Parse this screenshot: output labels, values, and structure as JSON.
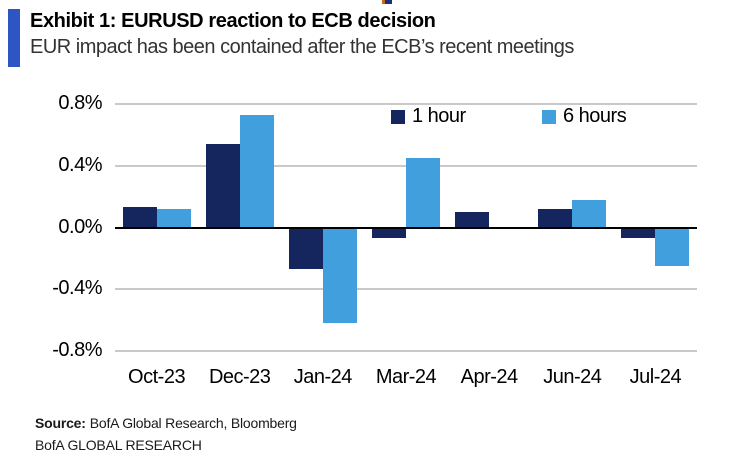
{
  "header": {
    "title": "Exhibit 1: EURUSD reaction to ECB decision",
    "subtitle": "EUR impact has been contained after the ECB’s recent meetings"
  },
  "chart_data": {
    "type": "bar",
    "title": "Exhibit 1: EURUSD reaction to ECB decision",
    "subtitle": "EUR impact has been contained after the ECB’s recent meetings",
    "categories": [
      "Oct-23",
      "Dec-23",
      "Jan-24",
      "Mar-24",
      "Apr-24",
      "Jun-24",
      "Jul-24"
    ],
    "series": [
      {
        "name": "1 hour",
        "color": "#15255e",
        "values": [
          0.13,
          0.54,
          -0.27,
          -0.07,
          0.1,
          0.12,
          -0.07
        ]
      },
      {
        "name": "6 hours",
        "color": "#429fde",
        "values": [
          0.12,
          0.73,
          -0.62,
          0.45,
          -0.01,
          0.18,
          -0.25
        ]
      }
    ],
    "xlabel": "",
    "ylabel": "",
    "ylim": [
      -0.8,
      0.8
    ],
    "yticks": [
      0.8,
      0.4,
      0.0,
      -0.4,
      -0.8
    ],
    "ytick_labels": [
      "0.8%",
      "0.4%",
      "0.0%",
      "-0.4%",
      "-0.8%"
    ],
    "grid": "horizontal gridlines on, zero axis black",
    "legend_position": "top-inside"
  },
  "footer": {
    "source_label": "Source:",
    "source_rest": "BofA Global Research, Bloomberg",
    "brand_line": "BofA GLOBAL RESEARCH"
  },
  "colors": {
    "accent_bar": "#2d55c3",
    "series_1h": "#15255e",
    "series_6h": "#429fde",
    "gridline": "#c9c9c9",
    "zero_axis": "#000000"
  }
}
